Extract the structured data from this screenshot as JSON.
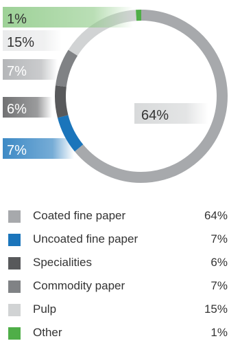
{
  "chart_data": {
    "type": "pie",
    "categories": [
      "Coated fine paper",
      "Uncoated fine paper",
      "Specialities",
      "Commodity paper",
      "Pulp",
      "Other"
    ],
    "values": [
      64,
      7,
      6,
      7,
      15,
      1
    ],
    "value_labels": [
      "64%",
      "7%",
      "6%",
      "7%",
      "15%",
      "1%"
    ],
    "colors": [
      "#a7a9ac",
      "#1b75bb",
      "#58595b",
      "#808285",
      "#d1d3d4",
      "#4fae48"
    ]
  },
  "legend": [
    {
      "label": "Coated fine paper",
      "value": "64%",
      "color": "#a7a9ac"
    },
    {
      "label": "Uncoated fine paper",
      "value": "7%",
      "color": "#1b75bb"
    },
    {
      "label": "Specialities",
      "value": "6%",
      "color": "#58595b"
    },
    {
      "label": "Commodity paper",
      "value": "7%",
      "color": "#808285"
    },
    {
      "label": "Pulp",
      "value": "15%",
      "color": "#d1d3d4"
    },
    {
      "label": "Other",
      "value": "1%",
      "color": "#4fae48"
    }
  ]
}
